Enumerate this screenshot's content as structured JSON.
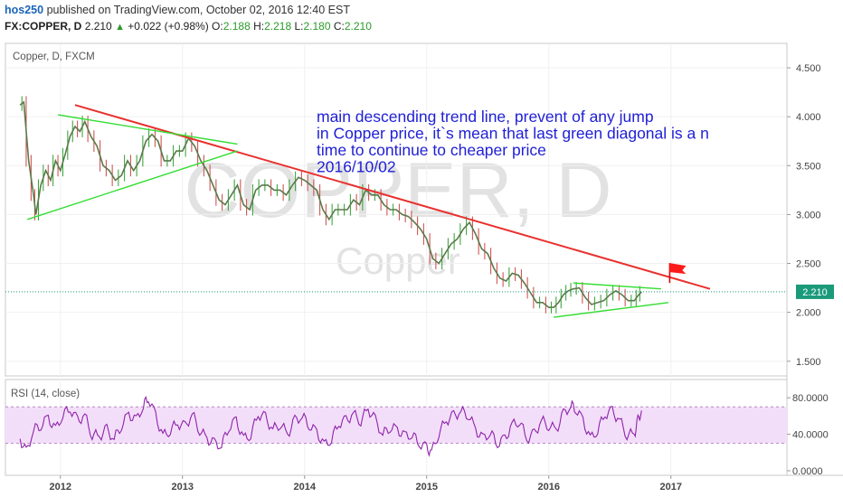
{
  "header": {
    "author": "hos250",
    "published_text": " published on TradingView.com, October 02, 2016 12:40 EST",
    "symbol": "FX:COPPER, D",
    "last": "2.210",
    "change_arrow": "▲",
    "change": "+0.022 (+0.98%)",
    "open_label": "O:",
    "open": "2.188",
    "high_label": "H:",
    "high": "2.218",
    "low_label": "L:",
    "low": "2.180",
    "close_label": "C:",
    "close": "2.210"
  },
  "chart_data": [
    {
      "type": "line",
      "name": "price-pane",
      "pane_label": "Copper, D, FXCM",
      "watermark_symbol": "COPPER, D",
      "watermark_name": "Copper",
      "x_ticks": [
        "2012",
        "2013",
        "2014",
        "2015",
        "2016",
        "2017"
      ],
      "x_tick_values": [
        2012.0,
        2013.0,
        2014.0,
        2015.0,
        2016.0,
        2017.0
      ],
      "y_ticks": [
        "4.500",
        "4.000",
        "3.500",
        "3.000",
        "2.500",
        "2.000",
        "1.500"
      ],
      "ylim": [
        1.35,
        4.75
      ],
      "xlim": [
        2011.55,
        2017.95
      ],
      "last_price_label": "2.210",
      "last_price": 2.21,
      "colors": {
        "up": "#2e9e2e",
        "down": "#cc4444",
        "red_trend": "#e8312e",
        "green_trend": "#33dd33",
        "annotation": "#1f1fd6",
        "price_line": "#1b9a7a",
        "price_box": "#1b9a7a"
      },
      "price_path": [
        [
          2011.67,
          4.12
        ],
        [
          2011.7,
          4.15
        ],
        [
          2011.74,
          3.55
        ],
        [
          2011.78,
          3.2
        ],
        [
          2011.8,
          3.0
        ],
        [
          2011.84,
          3.3
        ],
        [
          2011.88,
          3.45
        ],
        [
          2011.92,
          3.35
        ],
        [
          2011.96,
          3.55
        ],
        [
          2012.0,
          3.45
        ],
        [
          2012.04,
          3.62
        ],
        [
          2012.08,
          3.8
        ],
        [
          2012.12,
          3.9
        ],
        [
          2012.16,
          3.85
        ],
        [
          2012.2,
          3.95
        ],
        [
          2012.25,
          3.8
        ],
        [
          2012.3,
          3.7
        ],
        [
          2012.35,
          3.5
        ],
        [
          2012.4,
          3.45
        ],
        [
          2012.45,
          3.35
        ],
        [
          2012.5,
          3.4
        ],
        [
          2012.55,
          3.55
        ],
        [
          2012.6,
          3.45
        ],
        [
          2012.65,
          3.55
        ],
        [
          2012.7,
          3.75
        ],
        [
          2012.75,
          3.82
        ],
        [
          2012.8,
          3.75
        ],
        [
          2012.85,
          3.55
        ],
        [
          2012.9,
          3.55
        ],
        [
          2012.95,
          3.65
        ],
        [
          2013.0,
          3.65
        ],
        [
          2013.05,
          3.78
        ],
        [
          2013.1,
          3.7
        ],
        [
          2013.15,
          3.55
        ],
        [
          2013.2,
          3.45
        ],
        [
          2013.25,
          3.3
        ],
        [
          2013.3,
          3.15
        ],
        [
          2013.35,
          3.1
        ],
        [
          2013.4,
          3.2
        ],
        [
          2013.45,
          3.3
        ],
        [
          2013.5,
          3.1
        ],
        [
          2013.55,
          3.05
        ],
        [
          2013.6,
          3.25
        ],
        [
          2013.65,
          3.3
        ],
        [
          2013.7,
          3.3
        ],
        [
          2013.75,
          3.25
        ],
        [
          2013.8,
          3.25
        ],
        [
          2013.85,
          3.2
        ],
        [
          2013.9,
          3.3
        ],
        [
          2013.95,
          3.38
        ],
        [
          2014.0,
          3.35
        ],
        [
          2014.05,
          3.3
        ],
        [
          2014.1,
          3.25
        ],
        [
          2014.15,
          3.05
        ],
        [
          2014.2,
          2.95
        ],
        [
          2014.25,
          3.05
        ],
        [
          2014.3,
          3.05
        ],
        [
          2014.35,
          3.05
        ],
        [
          2014.4,
          3.15
        ],
        [
          2014.45,
          3.1
        ],
        [
          2014.5,
          3.25
        ],
        [
          2014.55,
          3.2
        ],
        [
          2014.6,
          3.2
        ],
        [
          2014.65,
          3.1
        ],
        [
          2014.7,
          3.05
        ],
        [
          2014.75,
          3.05
        ],
        [
          2014.8,
          3.0
        ],
        [
          2014.85,
          2.98
        ],
        [
          2014.9,
          2.92
        ],
        [
          2014.95,
          2.85
        ],
        [
          2015.0,
          2.75
        ],
        [
          2015.05,
          2.55
        ],
        [
          2015.1,
          2.5
        ],
        [
          2015.15,
          2.6
        ],
        [
          2015.2,
          2.7
        ],
        [
          2015.25,
          2.75
        ],
        [
          2015.3,
          2.85
        ],
        [
          2015.35,
          2.92
        ],
        [
          2015.4,
          2.8
        ],
        [
          2015.45,
          2.65
        ],
        [
          2015.5,
          2.6
        ],
        [
          2015.55,
          2.45
        ],
        [
          2015.6,
          2.35
        ],
        [
          2015.65,
          2.32
        ],
        [
          2015.7,
          2.4
        ],
        [
          2015.75,
          2.38
        ],
        [
          2015.8,
          2.3
        ],
        [
          2015.85,
          2.2
        ],
        [
          2015.9,
          2.1
        ],
        [
          2015.95,
          2.1
        ],
        [
          2016.0,
          2.05
        ],
        [
          2016.04,
          2.05
        ],
        [
          2016.08,
          2.1
        ],
        [
          2016.12,
          2.18
        ],
        [
          2016.16,
          2.22
        ],
        [
          2016.2,
          2.24
        ],
        [
          2016.25,
          2.25
        ],
        [
          2016.3,
          2.15
        ],
        [
          2016.35,
          2.08
        ],
        [
          2016.4,
          2.1
        ],
        [
          2016.45,
          2.12
        ],
        [
          2016.5,
          2.18
        ],
        [
          2016.55,
          2.22
        ],
        [
          2016.6,
          2.18
        ],
        [
          2016.65,
          2.12
        ],
        [
          2016.7,
          2.12
        ],
        [
          2016.73,
          2.17
        ],
        [
          2016.76,
          2.21
        ]
      ],
      "trend_lines": [
        {
          "name": "red-descending-trend-line",
          "color": "red_trend",
          "from": [
            2012.12,
            4.12
          ],
          "to": [
            2017.32,
            2.24
          ]
        },
        {
          "name": "green-upper-triangle-line",
          "color": "green_trend",
          "from": [
            2011.98,
            4.02
          ],
          "to": [
            2013.45,
            3.72
          ]
        },
        {
          "name": "green-lower-triangle-line",
          "color": "green_trend",
          "from": [
            2011.73,
            2.95
          ],
          "to": [
            2013.45,
            3.65
          ]
        },
        {
          "name": "green-upper-flag-line",
          "color": "green_trend",
          "from": [
            2016.2,
            2.3
          ],
          "to": [
            2016.92,
            2.24
          ]
        },
        {
          "name": "green-lower-flag-line",
          "color": "green_trend",
          "from": [
            2016.04,
            1.95
          ],
          "to": [
            2016.98,
            2.1
          ]
        }
      ],
      "flag_marker": {
        "x": 2016.99,
        "y": 2.43
      },
      "annotation_lines": [
        "main descending trend line, prevent of any jump",
        "in Copper price, it`s mean that last green diagonal is a n",
        "time to continue to cheaper price",
        "2016/10/02"
      ],
      "annotation_anchor": {
        "x": 2015.5,
        "y": 4.0
      }
    },
    {
      "type": "line",
      "name": "rsi-pane",
      "pane_label": "RSI (14, close)",
      "y_ticks": [
        "80.0000",
        "40.0000",
        "0.0000"
      ],
      "ylim": [
        -5,
        100
      ],
      "band": [
        30,
        70
      ],
      "colors": {
        "line": "#8e24aa",
        "band_fill": "#f3def9",
        "band_edge": "#b58ac4"
      },
      "rsi_path": [
        [
          2011.67,
          35
        ],
        [
          2011.72,
          20
        ],
        [
          2011.78,
          45
        ],
        [
          2011.84,
          50
        ],
        [
          2011.9,
          58
        ],
        [
          2011.96,
          45
        ],
        [
          2012.02,
          62
        ],
        [
          2012.08,
          68
        ],
        [
          2012.14,
          55
        ],
        [
          2012.2,
          60
        ],
        [
          2012.26,
          40
        ],
        [
          2012.32,
          38
        ],
        [
          2012.38,
          45
        ],
        [
          2012.44,
          35
        ],
        [
          2012.5,
          50
        ],
        [
          2012.56,
          62
        ],
        [
          2012.62,
          55
        ],
        [
          2012.68,
          72
        ],
        [
          2012.72,
          80
        ],
        [
          2012.78,
          60
        ],
        [
          2012.84,
          38
        ],
        [
          2012.9,
          45
        ],
        [
          2012.96,
          52
        ],
        [
          2013.02,
          48
        ],
        [
          2013.08,
          62
        ],
        [
          2013.14,
          45
        ],
        [
          2013.2,
          35
        ],
        [
          2013.26,
          30
        ],
        [
          2013.32,
          28
        ],
        [
          2013.38,
          48
        ],
        [
          2013.44,
          55
        ],
        [
          2013.5,
          35
        ],
        [
          2013.56,
          40
        ],
        [
          2013.62,
          62
        ],
        [
          2013.68,
          58
        ],
        [
          2013.74,
          45
        ],
        [
          2013.8,
          52
        ],
        [
          2013.86,
          40
        ],
        [
          2013.92,
          55
        ],
        [
          2013.98,
          60
        ],
        [
          2014.04,
          50
        ],
        [
          2014.1,
          42
        ],
        [
          2014.16,
          28
        ],
        [
          2014.22,
          35
        ],
        [
          2014.28,
          52
        ],
        [
          2014.34,
          55
        ],
        [
          2014.4,
          62
        ],
        [
          2014.46,
          55
        ],
        [
          2014.52,
          68
        ],
        [
          2014.58,
          55
        ],
        [
          2014.64,
          40
        ],
        [
          2014.7,
          48
        ],
        [
          2014.76,
          45
        ],
        [
          2014.82,
          38
        ],
        [
          2014.88,
          40
        ],
        [
          2014.94,
          30
        ],
        [
          2015.0,
          25
        ],
        [
          2015.04,
          20
        ],
        [
          2015.1,
          42
        ],
        [
          2015.16,
          55
        ],
        [
          2015.22,
          60
        ],
        [
          2015.28,
          65
        ],
        [
          2015.34,
          62
        ],
        [
          2015.4,
          45
        ],
        [
          2015.46,
          35
        ],
        [
          2015.52,
          42
        ],
        [
          2015.58,
          30
        ],
        [
          2015.64,
          35
        ],
        [
          2015.7,
          50
        ],
        [
          2015.76,
          55
        ],
        [
          2015.82,
          35
        ],
        [
          2015.88,
          40
        ],
        [
          2015.94,
          55
        ],
        [
          2016.0,
          50
        ],
        [
          2016.06,
          45
        ],
        [
          2016.12,
          62
        ],
        [
          2016.18,
          72
        ],
        [
          2016.22,
          68
        ],
        [
          2016.28,
          55
        ],
        [
          2016.34,
          35
        ],
        [
          2016.4,
          45
        ],
        [
          2016.46,
          62
        ],
        [
          2016.52,
          65
        ],
        [
          2016.58,
          55
        ],
        [
          2016.64,
          40
        ],
        [
          2016.7,
          40
        ],
        [
          2016.73,
          55
        ],
        [
          2016.76,
          66
        ]
      ]
    }
  ]
}
